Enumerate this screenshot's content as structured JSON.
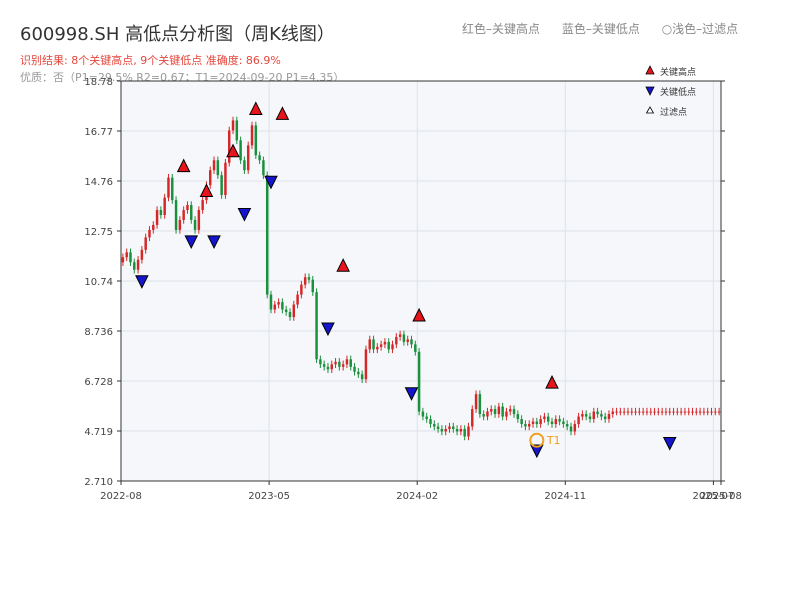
{
  "header": {
    "title": "600998.SH 高低点分析图（周K线图）",
    "legend_text": [
      "红色–关键高点",
      "蓝色–关键低点",
      "○浅色–过滤点"
    ],
    "result_text": "识别结果: 8个关键高点, 9个关键低点   准确度: 86.9%",
    "quality_text": "优质：否（P1=29.5%  R2=0.67；T1=2024-09-20 P1=4.35）"
  },
  "legend": {
    "high": "关键高点",
    "low": "关键低点",
    "filtered": "过滤点"
  },
  "colors": {
    "up": "#d62728",
    "down": "#1a8f3c",
    "high_marker": "#e8141c",
    "low_marker": "#1515d0",
    "t1_marker": "#f0a020",
    "plot_bg": "#f5f7fa",
    "grid": "#dde3ea"
  },
  "chart_data": {
    "type": "candlestick",
    "title": "600998.SH 高低点分析图（周K线图）",
    "xlabel": "",
    "ylabel": "",
    "ylim": [
      2.71,
      18.785
    ],
    "y_ticks": [
      "2.710",
      "4.719",
      "6.728",
      "8.736",
      "10.74",
      "12.75",
      "14.76",
      "16.77",
      "18.78"
    ],
    "x_ticks": [
      "2022-08",
      "2023-05",
      "2024-02",
      "2024-11",
      "2025-07",
      "2025-08"
    ],
    "x_tick_weeks": [
      0,
      39,
      78,
      117,
      156,
      158
    ],
    "grid": true,
    "weeks": 158,
    "closes": [
      11.7,
      11.9,
      11.5,
      11.2,
      11.6,
      12.0,
      12.5,
      12.8,
      13.0,
      13.6,
      13.4,
      14.1,
      14.9,
      14.0,
      12.8,
      13.2,
      13.6,
      13.8,
      13.2,
      12.8,
      13.6,
      14.0,
      14.6,
      15.2,
      15.6,
      15.0,
      14.2,
      15.5,
      16.8,
      17.2,
      16.4,
      15.6,
      15.2,
      16.2,
      17.0,
      15.8,
      15.6,
      15.0,
      10.2,
      9.6,
      9.8,
      9.9,
      9.6,
      9.5,
      9.3,
      9.8,
      10.2,
      10.6,
      10.9,
      10.8,
      10.3,
      7.6,
      7.4,
      7.3,
      7.2,
      7.4,
      7.5,
      7.3,
      7.4,
      7.6,
      7.3,
      7.1,
      7.0,
      6.8,
      8.0,
      8.4,
      8.0,
      8.1,
      8.2,
      8.3,
      8.0,
      8.2,
      8.5,
      8.6,
      8.3,
      8.4,
      8.2,
      7.9,
      5.5,
      5.3,
      5.2,
      5.0,
      4.9,
      4.8,
      4.7,
      4.8,
      4.9,
      4.8,
      4.7,
      4.8,
      4.5,
      4.9,
      5.6,
      6.2,
      5.4,
      5.3,
      5.5,
      5.6,
      5.4,
      5.7,
      5.3,
      5.5,
      5.6,
      5.4,
      5.2,
      5.0,
      4.9,
      5.0,
      5.1,
      5.0,
      5.2,
      5.3,
      5.1,
      5.0,
      5.2,
      5.1,
      5.0,
      4.9,
      4.7,
      5.0,
      5.3,
      5.4,
      5.3,
      5.2,
      5.5,
      5.4,
      5.3,
      5.2,
      5.4,
      5.5,
      5.5,
      5.5,
      5.5,
      5.5,
      5.5,
      5.5,
      5.5,
      5.5,
      5.5,
      5.5,
      5.5,
      5.5,
      5.5,
      5.5,
      5.5,
      5.5,
      5.5,
      5.5,
      5.5,
      5.5,
      5.5,
      5.5,
      5.5,
      5.5,
      5.5,
      5.5,
      5.5,
      5.5
    ],
    "key_highs": [
      {
        "week": 16,
        "price": 14.9
      },
      {
        "week": 22,
        "price": 13.9
      },
      {
        "week": 29,
        "price": 15.5
      },
      {
        "week": 35,
        "price": 17.2
      },
      {
        "week": 42,
        "price": 17.0
      },
      {
        "week": 58,
        "price": 10.9
      },
      {
        "week": 78,
        "price": 8.9
      },
      {
        "week": 113,
        "price": 6.2
      }
    ],
    "key_lows": [
      {
        "week": 5,
        "price": 11.2
      },
      {
        "week": 18,
        "price": 12.8
      },
      {
        "week": 24,
        "price": 12.8
      },
      {
        "week": 32,
        "price": 13.9
      },
      {
        "week": 39,
        "price": 15.2
      },
      {
        "week": 54,
        "price": 9.3
      },
      {
        "week": 76,
        "price": 6.7
      },
      {
        "week": 109,
        "price": 4.4
      },
      {
        "week": 144,
        "price": 4.7
      }
    ],
    "t1": {
      "week": 109,
      "price": 4.35,
      "label": "T1"
    }
  }
}
